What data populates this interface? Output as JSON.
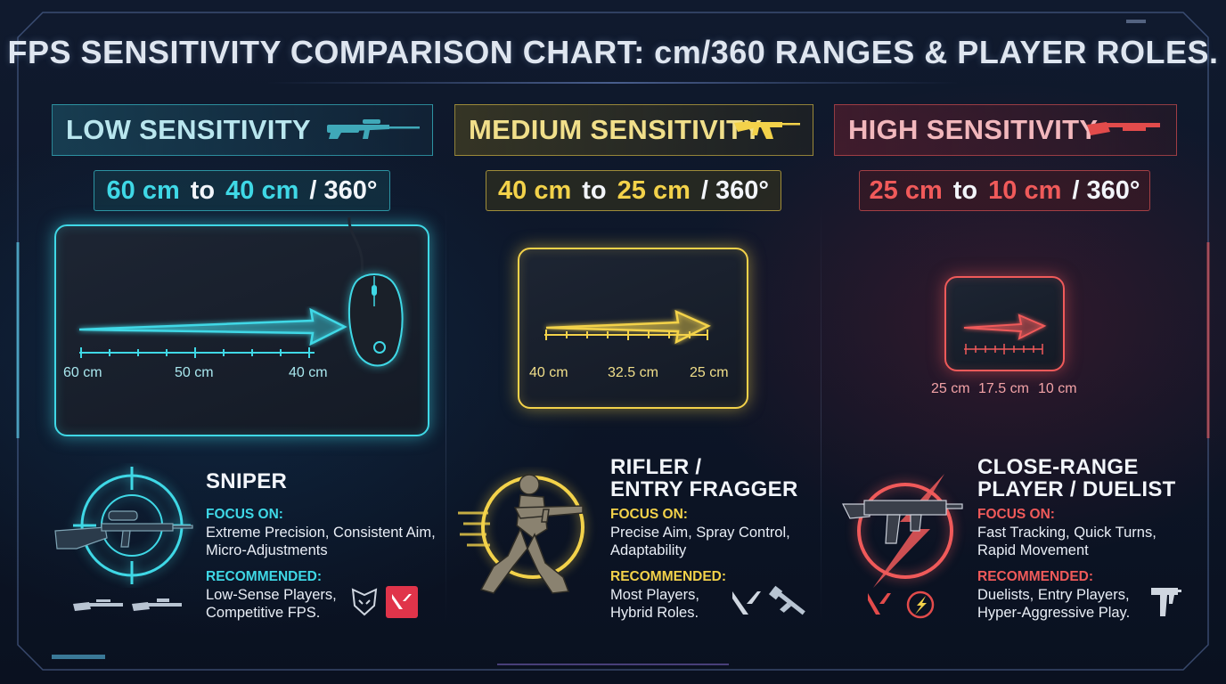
{
  "title": "FPS SENSITIVITY COMPARISON CHART: cm/360 RANGES & PLAYER ROLES.",
  "colors": {
    "low": "#3fd8e6",
    "medium": "#f3d24a",
    "high": "#f05a5a"
  },
  "columns": [
    {
      "heading": "LOW SENSITIVITY",
      "range": {
        "from": "60 cm",
        "to_word": "to",
        "to": "40 cm",
        "unit": "/ 360°"
      },
      "scale_labels": [
        "60 cm",
        "50 cm",
        "40 cm"
      ],
      "role": {
        "line1": "SNIPER",
        "line2": ""
      },
      "focus_label": "FOCUS ON:",
      "focus_lines": [
        "Extreme Precision, Consistent Aim,",
        "Micro-Adjustments"
      ],
      "recommended_label": "RECOMMENDED:",
      "recommended_lines": [
        "Low-Sense Players,",
        "Competitive FPS."
      ],
      "icons": [
        "sniper-rifle-icon",
        "mouse-icon",
        "crosshair-icon",
        "rifle-icon",
        "team-logo-icon",
        "valorant-logo-icon"
      ]
    },
    {
      "heading": "MEDIUM SENSITIVITY",
      "range": {
        "from": "40 cm",
        "to_word": "to",
        "to": "25 cm",
        "unit": "/ 360°"
      },
      "scale_labels": [
        "40 cm",
        "32.5 cm",
        "25 cm"
      ],
      "role": {
        "line1": "RIFLER /",
        "line2": "ENTRY FRAGGER"
      },
      "focus_label": "FOCUS ON:",
      "focus_lines": [
        "Precise Aim, Spray Control,",
        "Adaptability"
      ],
      "recommended_label": "RECOMMENDED:",
      "recommended_lines": [
        "Most Players,",
        "Hybrid Roles."
      ],
      "icons": [
        "assault-rifle-icon",
        "running-soldier-icon",
        "valorant-logo-icon",
        "rifle-icon"
      ]
    },
    {
      "heading": "HIGH SENSITIVITY",
      "range": {
        "from": "25 cm",
        "to_word": "to",
        "to": "10 cm",
        "unit": "/ 360°"
      },
      "scale_labels": [
        "25 cm",
        "17.5 cm",
        "10 cm"
      ],
      "role": {
        "line1": "CLOSE-RANGE",
        "line2": "PLAYER / DUELIST"
      },
      "focus_label": "FOCUS ON:",
      "focus_lines": [
        "Fast Tracking, Quick Turns,",
        "Rapid Movement"
      ],
      "recommended_label": "RECOMMENDED:",
      "recommended_lines": [
        "Duelists, Entry Players,",
        "Hyper-Aggressive Play."
      ],
      "icons": [
        "shotgun-icon",
        "smg-icon",
        "valorant-logo-icon",
        "team-logo-icon",
        "uzi-icon"
      ]
    }
  ]
}
